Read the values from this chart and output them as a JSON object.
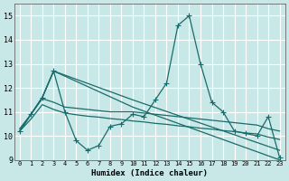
{
  "xlabel": "Humidex (Indice chaleur)",
  "xlim": [
    -0.5,
    23.5
  ],
  "ylim": [
    9,
    15.5
  ],
  "yticks": [
    9,
    10,
    11,
    12,
    13,
    14,
    15
  ],
  "xticks": [
    0,
    1,
    2,
    3,
    4,
    5,
    6,
    7,
    8,
    9,
    10,
    11,
    12,
    13,
    14,
    15,
    16,
    17,
    18,
    19,
    20,
    21,
    22,
    23
  ],
  "background_color": "#c8e8e8",
  "grid_color": "#ffffff",
  "line_color": "#1a6b6b",
  "line1_x": [
    0,
    1,
    2,
    3,
    4,
    5,
    6,
    7,
    8,
    9,
    10,
    11,
    12,
    13,
    14,
    15,
    16,
    17,
    18,
    19,
    20,
    21,
    22,
    23
  ],
  "line1_y": [
    10.2,
    10.9,
    11.6,
    12.7,
    11.0,
    9.8,
    9.4,
    9.6,
    10.4,
    10.5,
    10.9,
    10.8,
    11.5,
    12.2,
    14.6,
    15.0,
    13.0,
    11.4,
    11.0,
    10.2,
    10.1,
    10.0,
    10.8,
    9.1
  ],
  "line2_x": [
    0,
    2,
    3,
    10,
    23
  ],
  "line2_y": [
    10.2,
    11.6,
    12.7,
    11.5,
    9.4
  ],
  "line3_x": [
    0,
    2,
    3,
    10,
    23
  ],
  "line3_y": [
    10.2,
    11.6,
    12.7,
    11.2,
    9.0
  ],
  "line4_x": [
    0,
    1,
    2,
    3,
    4,
    5,
    6,
    7,
    8,
    9,
    10,
    11,
    12,
    13,
    14,
    15,
    16,
    17,
    18,
    19,
    20,
    21,
    22,
    23
  ],
  "line4_y": [
    10.3,
    10.9,
    11.55,
    11.4,
    11.2,
    11.15,
    11.1,
    11.05,
    11.0,
    11.0,
    11.0,
    10.95,
    10.9,
    10.85,
    10.8,
    10.75,
    10.7,
    10.65,
    10.6,
    10.55,
    10.5,
    10.45,
    10.3,
    10.2
  ],
  "line5_x": [
    0,
    1,
    2,
    3,
    4,
    5,
    6,
    7,
    8,
    9,
    10,
    11,
    12,
    13,
    14,
    15,
    16,
    17,
    18,
    19,
    20,
    21,
    22,
    23
  ],
  "line5_y": [
    10.2,
    10.7,
    11.3,
    11.1,
    10.95,
    10.88,
    10.82,
    10.78,
    10.72,
    10.68,
    10.62,
    10.58,
    10.52,
    10.48,
    10.42,
    10.38,
    10.32,
    10.28,
    10.22,
    10.18,
    10.12,
    10.08,
    9.95,
    9.85
  ]
}
